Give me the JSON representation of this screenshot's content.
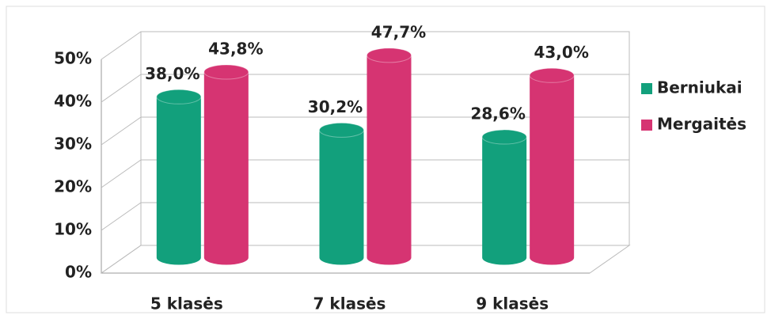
{
  "chart_data": {
    "type": "bar3d",
    "categories": [
      "5 klasės",
      "7 klasės",
      "9 klasės"
    ],
    "series": [
      {
        "name": "Berniukai",
        "color": "#12a07c",
        "values": [
          38.0,
          30.2,
          28.6
        ],
        "value_labels": [
          "38,0%",
          "30,2%",
          "28,6%"
        ]
      },
      {
        "name": "Mergaitės",
        "color": "#d63472",
        "values": [
          43.8,
          47.7,
          43.0
        ],
        "value_labels": [
          "43,8%",
          "47,7%",
          "43,0%"
        ]
      }
    ],
    "ylim": [
      0,
      50
    ],
    "yticks": [
      {
        "value": 0,
        "label": "0%"
      },
      {
        "value": 10,
        "label": "10%"
      },
      {
        "value": 20,
        "label": "20%"
      },
      {
        "value": 30,
        "label": "30%"
      },
      {
        "value": 40,
        "label": "40%"
      },
      {
        "value": 50,
        "label": "50%"
      }
    ],
    "grid": true,
    "legend": "right"
  }
}
